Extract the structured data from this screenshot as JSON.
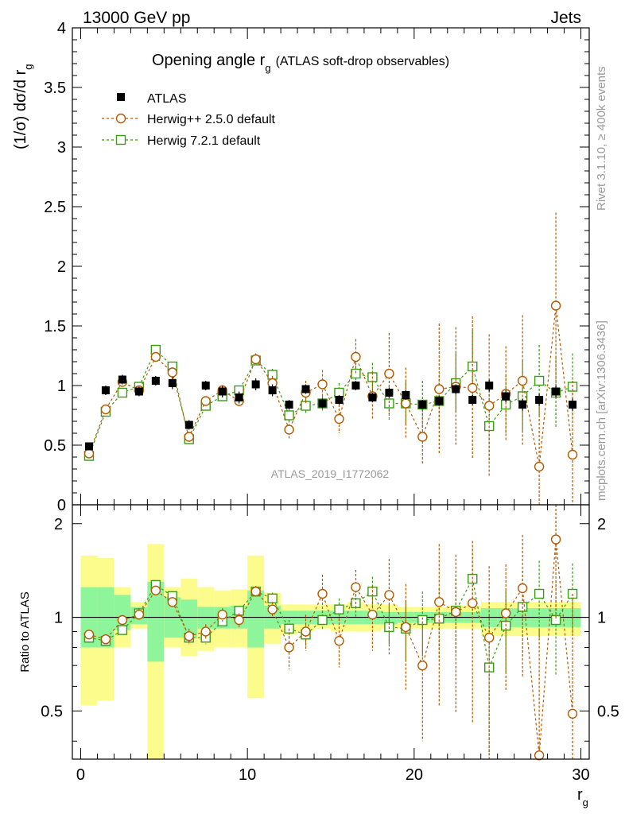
{
  "header": {
    "energy_label": "13000 GeV pp",
    "process_label": "Jets",
    "rivet_label": "Rivet 3.1.10, ≥ 400k events",
    "mcplots_label": "mcplots.cern.ch [arXiv:1306.3436]",
    "analysis_label": "ATLAS_2019_I1772062"
  },
  "colors": {
    "atlas": "#000000",
    "herwigpp": "#b35a00",
    "herwig7": "#3c9b14",
    "band_inner": "#8ff59b",
    "band_outer": "#fcfc8c",
    "watermark": "#9a9a9a"
  },
  "chart_data": [
    {
      "type": "scatter",
      "panel": "main",
      "title": "Opening angle r_g (ATLAS soft-drop observables)",
      "title_main": "Opening angle r",
      "title_sub": "g",
      "title_rest": "(ATLAS soft-drop observables)",
      "xlabel": "r_g",
      "xlabel_main": "r",
      "xlabel_sub": "g",
      "ylabel": "(1/σ) dσ/d r_g",
      "ylabel_main": "(1/σ) dσ/d r",
      "ylabel_sub": "g",
      "xlim": [
        -0.5,
        30.5
      ],
      "ylim": [
        0,
        4
      ],
      "xticks": [
        "0",
        "10",
        "20",
        "30"
      ],
      "yticks": [
        "0",
        "0.5",
        "1",
        "1.5",
        "2",
        "2.5",
        "3",
        "3.5",
        "4"
      ],
      "x": [
        0.5,
        1.5,
        2.5,
        3.5,
        4.5,
        5.5,
        6.5,
        7.5,
        8.5,
        9.5,
        10.5,
        11.5,
        12.5,
        13.5,
        14.5,
        15.5,
        16.5,
        17.5,
        18.5,
        19.5,
        20.5,
        21.5,
        22.5,
        23.5,
        24.5,
        25.5,
        26.5,
        27.5,
        28.5,
        29.5
      ],
      "legend": [
        {
          "label": "ATLAS",
          "marker": "filled-square"
        },
        {
          "label": "Herwig++ 2.5.0 default",
          "marker": "open-circle"
        },
        {
          "label": "Herwig 7.2.1 default",
          "marker": "open-square"
        }
      ],
      "series": [
        {
          "name": "ATLAS",
          "values": [
            0.49,
            0.96,
            1.05,
            0.95,
            1.04,
            1.02,
            0.67,
            1.0,
            0.95,
            0.9,
            1.01,
            0.96,
            0.84,
            0.97,
            0.85,
            0.88,
            1.0,
            0.9,
            0.94,
            0.92,
            0.84,
            0.87,
            0.97,
            0.88,
            1.0,
            0.91,
            0.84,
            0.88,
            0.95,
            0.84
          ],
          "errors": [
            0.03,
            0.04,
            0.04,
            0.04,
            0.04,
            0.05,
            0.04,
            0.04,
            0.05,
            0.05,
            0.05,
            0.05,
            0.04,
            0.04,
            0.04,
            0.04,
            0.04,
            0.04,
            0.04,
            0.04,
            0.04,
            0.04,
            0.04,
            0.04,
            0.05,
            0.05,
            0.05,
            0.05,
            0.05,
            0.05
          ]
        },
        {
          "name": "Herwig++ 2.5.0 default",
          "values": [
            0.43,
            0.8,
            1.03,
            0.96,
            1.24,
            1.11,
            0.57,
            0.87,
            0.96,
            0.87,
            1.22,
            1.02,
            0.63,
            0.94,
            1.01,
            0.72,
            1.24,
            0.91,
            1.1,
            0.85,
            0.57,
            0.97,
            0.99,
            0.98,
            0.83,
            0.93,
            1.04,
            0.32,
            1.67,
            0.42
          ],
          "errors": [
            0.03,
            0.03,
            0.04,
            0.04,
            0.04,
            0.04,
            0.04,
            0.04,
            0.04,
            0.04,
            0.05,
            0.06,
            0.08,
            0.1,
            0.12,
            0.12,
            0.15,
            0.2,
            0.34,
            0.3,
            0.23,
            0.55,
            0.5,
            0.6,
            0.6,
            0.4,
            0.55,
            0.5,
            0.78,
            0.62
          ]
        },
        {
          "name": "Herwig 7.2.1 default",
          "values": [
            0.41,
            0.78,
            0.94,
            0.99,
            1.3,
            1.16,
            0.55,
            0.83,
            0.91,
            0.96,
            1.21,
            1.09,
            0.75,
            0.83,
            0.85,
            0.94,
            1.1,
            1.07,
            0.85,
            0.85,
            0.84,
            0.87,
            1.02,
            1.16,
            0.66,
            0.84,
            0.91,
            1.04,
            0.94,
            0.99
          ],
          "errors": [
            0.03,
            0.03,
            0.03,
            0.04,
            0.04,
            0.04,
            0.03,
            0.04,
            0.04,
            0.04,
            0.05,
            0.05,
            0.05,
            0.06,
            0.06,
            0.08,
            0.1,
            0.12,
            0.15,
            0.18,
            0.2,
            0.22,
            0.25,
            0.3,
            0.3,
            0.25,
            0.3,
            0.3,
            0.3,
            0.28
          ]
        }
      ]
    },
    {
      "type": "scatter",
      "panel": "ratio",
      "ylabel": "Ratio to ATLAS",
      "xlim": [
        -0.5,
        30.5
      ],
      "ylim": [
        0.35,
        2.3
      ],
      "yscale": "log",
      "yticks_left": [
        "0.5",
        "1",
        "2"
      ],
      "yticks_right": [
        "0.5",
        "1",
        "2"
      ],
      "x": [
        0.5,
        1.5,
        2.5,
        3.5,
        4.5,
        5.5,
        6.5,
        7.5,
        8.5,
        9.5,
        10.5,
        11.5,
        12.5,
        13.5,
        14.5,
        15.5,
        16.5,
        17.5,
        18.5,
        19.5,
        20.5,
        21.5,
        22.5,
        23.5,
        24.5,
        25.5,
        26.5,
        27.5,
        28.5,
        29.5
      ],
      "band_inner": {
        "low": [
          0.8,
          0.8,
          0.91,
          0.95,
          0.72,
          0.86,
          0.86,
          0.92,
          0.92,
          0.92,
          0.8,
          0.92,
          0.95,
          0.95,
          0.95,
          0.95,
          0.95,
          0.95,
          0.95,
          0.96,
          0.96,
          0.96,
          0.96,
          0.96,
          0.93,
          0.93,
          0.93,
          0.93,
          0.93,
          0.93
        ],
        "high": [
          1.25,
          1.25,
          1.18,
          1.08,
          1.3,
          1.16,
          1.14,
          1.08,
          1.08,
          1.09,
          1.22,
          1.09,
          1.05,
          1.05,
          1.05,
          1.05,
          1.05,
          1.05,
          1.04,
          1.04,
          1.04,
          1.04,
          1.04,
          1.04,
          1.07,
          1.07,
          1.07,
          1.07,
          1.07,
          1.07
        ]
      },
      "band_outer": {
        "low": [
          0.52,
          0.54,
          0.8,
          0.92,
          0.3,
          0.8,
          0.75,
          0.78,
          0.8,
          0.8,
          0.55,
          0.82,
          0.88,
          0.9,
          0.92,
          0.9,
          0.9,
          0.9,
          0.92,
          0.92,
          0.92,
          0.92,
          0.92,
          0.92,
          0.87,
          0.87,
          0.87,
          0.87,
          0.87,
          0.87
        ],
        "high": [
          1.58,
          1.55,
          1.25,
          1.12,
          1.72,
          1.25,
          1.33,
          1.25,
          1.22,
          1.23,
          1.58,
          1.2,
          1.1,
          1.1,
          1.1,
          1.1,
          1.12,
          1.1,
          1.1,
          1.08,
          1.08,
          1.08,
          1.09,
          1.09,
          1.12,
          1.12,
          1.12,
          1.12,
          1.12,
          1.12
        ]
      },
      "series": [
        {
          "name": "Herwig++ 2.5.0 default",
          "values": [
            0.88,
            0.85,
            0.98,
            1.02,
            1.22,
            1.12,
            0.87,
            0.9,
            1.02,
            0.98,
            1.21,
            1.06,
            0.8,
            0.9,
            1.19,
            0.84,
            1.25,
            1.02,
            1.18,
            0.93,
            0.7,
            1.12,
            1.04,
            1.11,
            0.86,
            1.03,
            1.24,
            0.36,
            1.78,
            0.49
          ],
          "errors": [
            0.03,
            0.03,
            0.03,
            0.04,
            0.04,
            0.04,
            0.05,
            0.05,
            0.05,
            0.05,
            0.05,
            0.06,
            0.12,
            0.12,
            0.18,
            0.15,
            0.17,
            0.24,
            0.36,
            0.35,
            0.3,
            0.6,
            0.55,
            0.65,
            0.6,
            0.45,
            0.6,
            0.55,
            0.8,
            0.7
          ]
        },
        {
          "name": "Herwig 7.2.1 default",
          "values": [
            0.86,
            0.84,
            0.91,
            1.03,
            1.27,
            1.17,
            0.86,
            0.86,
            0.97,
            1.05,
            1.21,
            1.15,
            0.92,
            0.88,
            0.98,
            1.06,
            1.11,
            1.21,
            0.93,
            0.92,
            0.98,
            0.99,
            1.05,
            1.33,
            0.69,
            0.94,
            1.08,
            1.19,
            0.98,
            1.19
          ],
          "errors": [
            0.03,
            0.03,
            0.03,
            0.04,
            0.04,
            0.04,
            0.04,
            0.04,
            0.04,
            0.04,
            0.05,
            0.05,
            0.06,
            0.07,
            0.07,
            0.09,
            0.11,
            0.14,
            0.17,
            0.2,
            0.23,
            0.25,
            0.28,
            0.33,
            0.33,
            0.28,
            0.33,
            0.33,
            0.33,
            0.3
          ]
        }
      ]
    }
  ]
}
